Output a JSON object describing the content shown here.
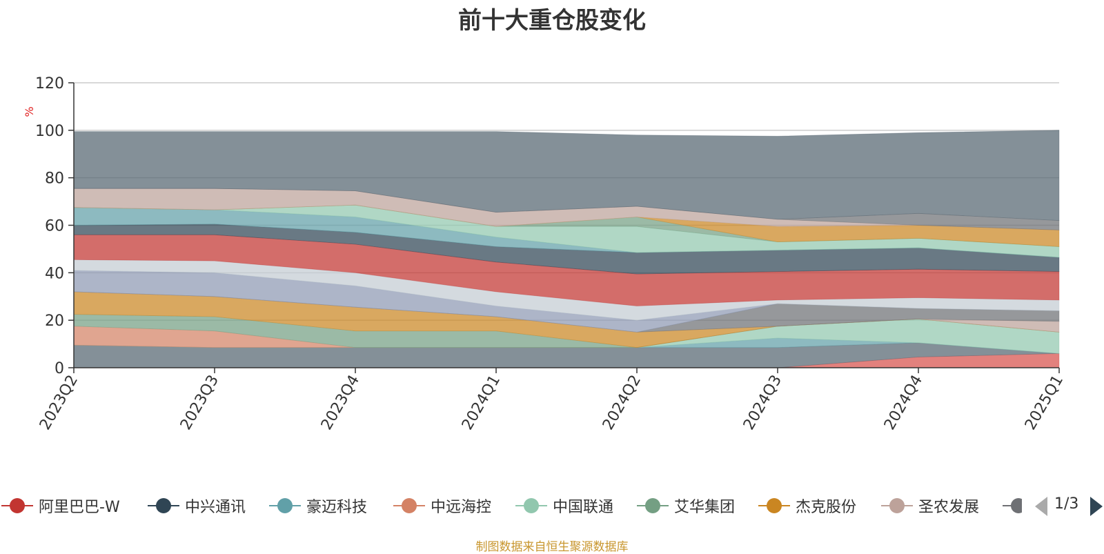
{
  "chart_data": {
    "type": "area",
    "title": "前十大重仓股变化",
    "ylabel": "%",
    "ylim": [
      0,
      120
    ],
    "yticks": [
      0,
      20,
      40,
      60,
      80,
      100,
      120
    ],
    "categories": [
      "2023Q2",
      "2023Q3",
      "2023Q4",
      "2024Q1",
      "2024Q2",
      "2024Q3",
      "2024Q4",
      "2025Q1"
    ],
    "grid": true,
    "stacked": true,
    "layers": [
      {
        "color": "#d7504b",
        "values": [
          0,
          0,
          0,
          0,
          0,
          0,
          4.5,
          6
        ]
      },
      {
        "color": "#546570",
        "values": [
          9.5,
          8.5,
          8.5,
          8.5,
          8.5,
          8.5,
          6,
          0
        ]
      },
      {
        "color": "#61a0a8",
        "values": [
          0,
          0,
          0,
          0,
          0,
          4,
          0,
          0
        ]
      },
      {
        "color": "#91c7ae",
        "values": [
          0,
          0,
          0,
          0,
          0,
          5,
          10,
          9
        ]
      },
      {
        "color": "#d48265",
        "values": [
          8,
          7,
          0,
          0,
          0,
          0,
          0,
          0
        ]
      },
      {
        "color": "#749f83",
        "values": [
          5,
          6,
          7,
          7,
          0,
          0,
          0,
          0
        ]
      },
      {
        "color": "#ca8622",
        "values": [
          9.5,
          8.5,
          10,
          6,
          6.5,
          0,
          0,
          0
        ]
      },
      {
        "color": "#bda29a",
        "values": [
          0,
          0,
          0,
          0,
          0,
          0,
          0,
          4.5
        ]
      },
      {
        "color": "#6e7074",
        "values": [
          0,
          0,
          0,
          0,
          0,
          9.5,
          4.5,
          4.5
        ]
      },
      {
        "color": "#8d98b3",
        "values": [
          9,
          10,
          9,
          4.5,
          5,
          0,
          0,
          0
        ]
      },
      {
        "color": "#c4ccd3",
        "values": [
          4.5,
          5,
          5.5,
          6,
          6,
          1.5,
          4.5,
          4.5
        ]
      },
      {
        "color": "#c23531",
        "values": [
          10.5,
          11,
          12,
          12.5,
          13.5,
          12,
          12,
          12
        ]
      },
      {
        "color": "#2f4554",
        "values": [
          4,
          4.5,
          5,
          6.5,
          9,
          9,
          9,
          6
        ]
      },
      {
        "color": "#61a0a8",
        "values": [
          7.5,
          6,
          6.5,
          4,
          0,
          0,
          0,
          0
        ]
      },
      {
        "color": "#91c7ae",
        "values": [
          0,
          0,
          5,
          4.5,
          11,
          3.5,
          4,
          4.5
        ]
      },
      {
        "color": "#749f83",
        "values": [
          0,
          0,
          0,
          0,
          4,
          0,
          0,
          0
        ]
      },
      {
        "color": "#ca8622",
        "values": [
          0,
          0,
          0,
          0,
          0,
          6.5,
          5.5,
          7
        ]
      },
      {
        "color": "#bda29a",
        "values": [
          8,
          9,
          6,
          6,
          4.5,
          3,
          0,
          0
        ]
      },
      {
        "color": "#6e7074",
        "values": [
          0,
          0,
          0,
          0,
          0,
          0,
          5,
          4
        ]
      },
      {
        "color": "#546570",
        "values": [
          24,
          24,
          25,
          34,
          30,
          35,
          34,
          38
        ]
      }
    ],
    "legend": {
      "placement": "bottom",
      "items": [
        {
          "label": "阿里巴巴-W",
          "color": "#c23531"
        },
        {
          "label": "中兴通讯",
          "color": "#2f4554"
        },
        {
          "label": "豪迈科技",
          "color": "#61a0a8"
        },
        {
          "label": "中远海控",
          "color": "#d48265"
        },
        {
          "label": "中国联通",
          "color": "#91c7ae"
        },
        {
          "label": "艾华集团",
          "color": "#749f83"
        },
        {
          "label": "杰克股份",
          "color": "#ca8622"
        },
        {
          "label": "圣农发展",
          "color": "#bda29a"
        },
        {
          "label": "",
          "color": "#6e7074"
        }
      ],
      "page": "1/3"
    }
  },
  "footer": {
    "source": "制图数据来自恒生聚源数据库"
  }
}
